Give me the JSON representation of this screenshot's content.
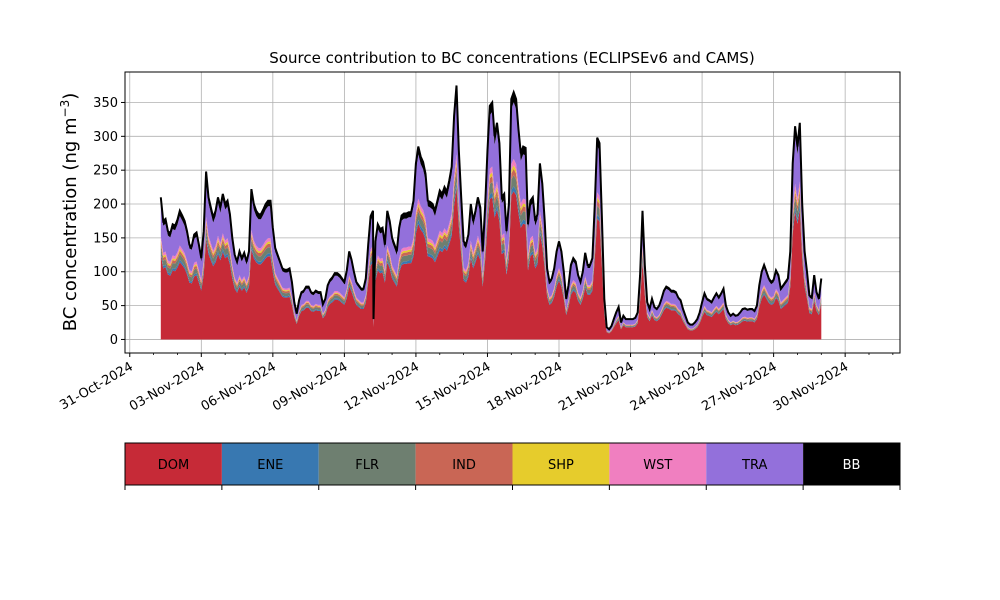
{
  "chart_data": {
    "type": "area",
    "title": "Source contribution to BC concentrations (ECLIPSEv6 and CAMS)",
    "ylabel_main": "BC concentration (ng m",
    "ylabel_sup": "−3",
    "ylabel_close": ")",
    "xlabel": "",
    "ylim": [
      -20,
      395
    ],
    "xlim_days": [
      -0.2,
      32.3
    ],
    "grid": true,
    "yticks": [
      0,
      50,
      100,
      150,
      200,
      250,
      300,
      350
    ],
    "xticks": [
      {
        "day": 0,
        "label": "31-Oct-2024"
      },
      {
        "day": 3,
        "label": "03-Nov-2024"
      },
      {
        "day": 6,
        "label": "06-Nov-2024"
      },
      {
        "day": 9,
        "label": "09-Nov-2024"
      },
      {
        "day": 12,
        "label": "12-Nov-2024"
      },
      {
        "day": 15,
        "label": "15-Nov-2024"
      },
      {
        "day": 18,
        "label": "18-Nov-2024"
      },
      {
        "day": 21,
        "label": "21-Nov-2024"
      },
      {
        "day": 24,
        "label": "24-Nov-2024"
      },
      {
        "day": 27,
        "label": "27-Nov-2024"
      },
      {
        "day": 30,
        "label": "30-Nov-2024"
      }
    ],
    "series_meta": [
      {
        "name": "DOM",
        "color": "#c62a37"
      },
      {
        "name": "ENE",
        "color": "#3878b1"
      },
      {
        "name": "FLR",
        "color": "#6e7f70"
      },
      {
        "name": "IND",
        "color": "#c96655"
      },
      {
        "name": "SHP",
        "color": "#e6cc2c"
      },
      {
        "name": "WST",
        "color": "#f07fc0"
      },
      {
        "name": "TRA",
        "color": "#9370db"
      },
      {
        "name": "BB",
        "color": "#000000"
      }
    ],
    "total_profile": [
      [
        1.3,
        210
      ],
      [
        1.4,
        175
      ],
      [
        1.5,
        178
      ],
      [
        1.6,
        160
      ],
      [
        1.7,
        157
      ],
      [
        1.8,
        170
      ],
      [
        1.9,
        168
      ],
      [
        2.0,
        177
      ],
      [
        2.1,
        190
      ],
      [
        2.2,
        183
      ],
      [
        2.3,
        175
      ],
      [
        2.4,
        160
      ],
      [
        2.5,
        140
      ],
      [
        2.6,
        138
      ],
      [
        2.7,
        155
      ],
      [
        2.8,
        158
      ],
      [
        2.9,
        140
      ],
      [
        3.0,
        120
      ],
      [
        3.1,
        160
      ],
      [
        3.2,
        248
      ],
      [
        3.3,
        210
      ],
      [
        3.4,
        195
      ],
      [
        3.5,
        180
      ],
      [
        3.6,
        190
      ],
      [
        3.7,
        210
      ],
      [
        3.8,
        195
      ],
      [
        3.9,
        215
      ],
      [
        4.0,
        200
      ],
      [
        4.1,
        205
      ],
      [
        4.2,
        185
      ],
      [
        4.3,
        150
      ],
      [
        4.4,
        125
      ],
      [
        4.5,
        115
      ],
      [
        4.6,
        130
      ],
      [
        4.7,
        120
      ],
      [
        4.8,
        128
      ],
      [
        4.9,
        115
      ],
      [
        5.0,
        130
      ],
      [
        5.1,
        222
      ],
      [
        5.2,
        200
      ],
      [
        5.3,
        190
      ],
      [
        5.4,
        185
      ],
      [
        5.5,
        185
      ],
      [
        5.6,
        192
      ],
      [
        5.7,
        200
      ],
      [
        5.8,
        205
      ],
      [
        5.9,
        205
      ],
      [
        6.0,
        165
      ],
      [
        6.1,
        135
      ],
      [
        6.2,
        125
      ],
      [
        6.3,
        115
      ],
      [
        6.4,
        105
      ],
      [
        6.5,
        103
      ],
      [
        6.6,
        103
      ],
      [
        6.7,
        105
      ],
      [
        6.8,
        85
      ],
      [
        6.9,
        55
      ],
      [
        7.0,
        38
      ],
      [
        7.1,
        58
      ],
      [
        7.2,
        70
      ],
      [
        7.3,
        72
      ],
      [
        7.4,
        78
      ],
      [
        7.5,
        78
      ],
      [
        7.6,
        70
      ],
      [
        7.7,
        68
      ],
      [
        7.8,
        72
      ],
      [
        7.9,
        70
      ],
      [
        8.0,
        70
      ],
      [
        8.1,
        52
      ],
      [
        8.2,
        60
      ],
      [
        8.3,
        80
      ],
      [
        8.4,
        88
      ],
      [
        8.5,
        92
      ],
      [
        8.6,
        98
      ],
      [
        8.7,
        98
      ],
      [
        8.8,
        95
      ],
      [
        8.9,
        90
      ],
      [
        9.0,
        85
      ],
      [
        9.1,
        102
      ],
      [
        9.2,
        130
      ],
      [
        9.3,
        118
      ],
      [
        9.4,
        100
      ],
      [
        9.5,
        85
      ],
      [
        9.6,
        80
      ],
      [
        9.7,
        75
      ],
      [
        9.8,
        75
      ],
      [
        9.9,
        90
      ],
      [
        10.0,
        140
      ],
      [
        10.1,
        182
      ],
      [
        10.2,
        190
      ],
      [
        10.22,
        30
      ],
      [
        10.3,
        145
      ],
      [
        10.4,
        170
      ],
      [
        10.5,
        163
      ],
      [
        10.6,
        165
      ],
      [
        10.7,
        140
      ],
      [
        10.8,
        190
      ],
      [
        10.9,
        175
      ],
      [
        11.0,
        150
      ],
      [
        11.1,
        140
      ],
      [
        11.2,
        130
      ],
      [
        11.3,
        165
      ],
      [
        11.4,
        183
      ],
      [
        11.5,
        186
      ],
      [
        11.6,
        186
      ],
      [
        11.7,
        188
      ],
      [
        11.8,
        188
      ],
      [
        11.9,
        205
      ],
      [
        12.0,
        260
      ],
      [
        12.1,
        285
      ],
      [
        12.2,
        270
      ],
      [
        12.3,
        262
      ],
      [
        12.4,
        245
      ],
      [
        12.5,
        205
      ],
      [
        12.6,
        203
      ],
      [
        12.7,
        200
      ],
      [
        12.8,
        190
      ],
      [
        12.9,
        205
      ],
      [
        13.0,
        220
      ],
      [
        13.1,
        215
      ],
      [
        13.2,
        225
      ],
      [
        13.3,
        218
      ],
      [
        13.4,
        235
      ],
      [
        13.5,
        255
      ],
      [
        13.6,
        330
      ],
      [
        13.7,
        375
      ],
      [
        13.8,
        280
      ],
      [
        13.9,
        210
      ],
      [
        14.0,
        145
      ],
      [
        14.1,
        140
      ],
      [
        14.2,
        155
      ],
      [
        14.3,
        200
      ],
      [
        14.4,
        175
      ],
      [
        14.5,
        190
      ],
      [
        14.6,
        210
      ],
      [
        14.7,
        195
      ],
      [
        14.8,
        130
      ],
      [
        14.9,
        195
      ],
      [
        15.0,
        280
      ],
      [
        15.1,
        345
      ],
      [
        15.2,
        350
      ],
      [
        15.3,
        300
      ],
      [
        15.4,
        320
      ],
      [
        15.5,
        290
      ],
      [
        15.6,
        210
      ],
      [
        15.7,
        215
      ],
      [
        15.8,
        160
      ],
      [
        15.9,
        200
      ],
      [
        16.0,
        355
      ],
      [
        16.1,
        365
      ],
      [
        16.2,
        355
      ],
      [
        16.3,
        310
      ],
      [
        16.4,
        275
      ],
      [
        16.5,
        285
      ],
      [
        16.6,
        283
      ],
      [
        16.7,
        170
      ],
      [
        16.8,
        205
      ],
      [
        16.9,
        210
      ],
      [
        17.0,
        175
      ],
      [
        17.1,
        185
      ],
      [
        17.2,
        260
      ],
      [
        17.3,
        230
      ],
      [
        17.4,
        175
      ],
      [
        17.5,
        105
      ],
      [
        17.6,
        85
      ],
      [
        17.7,
        90
      ],
      [
        17.8,
        105
      ],
      [
        17.9,
        130
      ],
      [
        18.0,
        145
      ],
      [
        18.1,
        130
      ],
      [
        18.2,
        100
      ],
      [
        18.3,
        60
      ],
      [
        18.4,
        80
      ],
      [
        18.5,
        110
      ],
      [
        18.6,
        120
      ],
      [
        18.7,
        115
      ],
      [
        18.8,
        95
      ],
      [
        18.9,
        85
      ],
      [
        19.0,
        100
      ],
      [
        19.1,
        128
      ],
      [
        19.2,
        110
      ],
      [
        19.3,
        110
      ],
      [
        19.4,
        120
      ],
      [
        19.5,
        200
      ],
      [
        19.6,
        298
      ],
      [
        19.7,
        290
      ],
      [
        19.8,
        180
      ],
      [
        19.9,
        60
      ],
      [
        20.0,
        18
      ],
      [
        20.1,
        15
      ],
      [
        20.2,
        20
      ],
      [
        20.3,
        30
      ],
      [
        20.4,
        40
      ],
      [
        20.5,
        48
      ],
      [
        20.6,
        25
      ],
      [
        20.7,
        35
      ],
      [
        20.8,
        30
      ],
      [
        20.9,
        30
      ],
      [
        21.0,
        30
      ],
      [
        21.1,
        30
      ],
      [
        21.2,
        32
      ],
      [
        21.3,
        40
      ],
      [
        21.4,
        95
      ],
      [
        21.5,
        190
      ],
      [
        21.6,
        110
      ],
      [
        21.7,
        55
      ],
      [
        21.8,
        45
      ],
      [
        21.9,
        60
      ],
      [
        22.0,
        48
      ],
      [
        22.1,
        45
      ],
      [
        22.2,
        50
      ],
      [
        22.3,
        60
      ],
      [
        22.4,
        72
      ],
      [
        22.5,
        78
      ],
      [
        22.6,
        76
      ],
      [
        22.7,
        72
      ],
      [
        22.8,
        72
      ],
      [
        22.9,
        70
      ],
      [
        23.0,
        62
      ],
      [
        23.1,
        58
      ],
      [
        23.2,
        45
      ],
      [
        23.3,
        35
      ],
      [
        23.4,
        25
      ],
      [
        23.5,
        22
      ],
      [
        23.6,
        22
      ],
      [
        23.7,
        25
      ],
      [
        23.8,
        30
      ],
      [
        23.9,
        40
      ],
      [
        24.0,
        55
      ],
      [
        24.1,
        68
      ],
      [
        24.2,
        60
      ],
      [
        24.3,
        58
      ],
      [
        24.4,
        55
      ],
      [
        24.5,
        62
      ],
      [
        24.6,
        68
      ],
      [
        24.7,
        62
      ],
      [
        24.8,
        68
      ],
      [
        24.9,
        75
      ],
      [
        25.0,
        50
      ],
      [
        25.1,
        40
      ],
      [
        25.2,
        35
      ],
      [
        25.3,
        38
      ],
      [
        25.4,
        35
      ],
      [
        25.5,
        36
      ],
      [
        25.6,
        40
      ],
      [
        25.7,
        45
      ],
      [
        25.8,
        46
      ],
      [
        25.9,
        44
      ],
      [
        26.0,
        45
      ],
      [
        26.1,
        45
      ],
      [
        26.2,
        42
      ],
      [
        26.3,
        50
      ],
      [
        26.4,
        80
      ],
      [
        26.5,
        100
      ],
      [
        26.6,
        110
      ],
      [
        26.7,
        100
      ],
      [
        26.8,
        90
      ],
      [
        26.9,
        85
      ],
      [
        27.0,
        88
      ],
      [
        27.1,
        102
      ],
      [
        27.2,
        95
      ],
      [
        27.3,
        75
      ],
      [
        27.4,
        80
      ],
      [
        27.5,
        85
      ],
      [
        27.6,
        90
      ],
      [
        27.7,
        130
      ],
      [
        27.8,
        260
      ],
      [
        27.9,
        315
      ],
      [
        28.0,
        285
      ],
      [
        28.1,
        320
      ],
      [
        28.2,
        200
      ],
      [
        28.3,
        130
      ],
      [
        28.4,
        100
      ],
      [
        28.5,
        65
      ],
      [
        28.6,
        62
      ],
      [
        28.7,
        95
      ],
      [
        28.8,
        70
      ],
      [
        28.9,
        60
      ],
      [
        29.0,
        90
      ]
    ],
    "fractions": {
      "DOM": 0.6,
      "ENE": 0.02,
      "FLR": 0.045,
      "IND": 0.025,
      "SHP": 0.015,
      "WST": 0.025,
      "TRA": 0.23,
      "BB": 0.04
    },
    "legend": [
      "DOM",
      "ENE",
      "FLR",
      "IND",
      "SHP",
      "WST",
      "TRA",
      "BB"
    ]
  }
}
